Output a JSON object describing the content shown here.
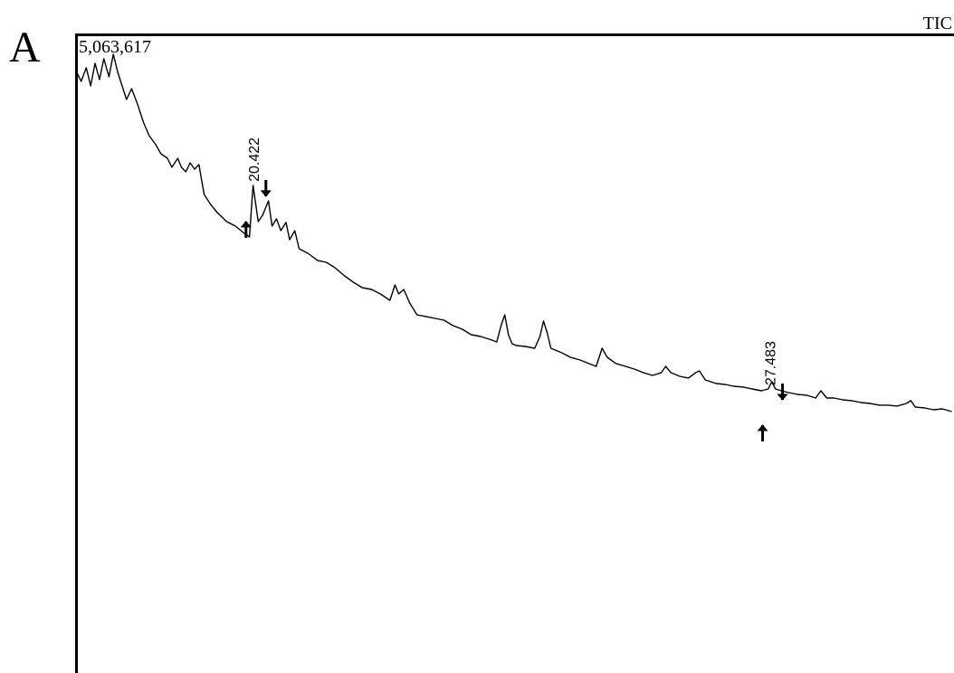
{
  "panel_label": "A",
  "chart_data": {
    "type": "line",
    "title": "TIC",
    "color": "#000000",
    "xlim": [
      18,
      30
    ],
    "ylim": [
      0,
      5063617
    ],
    "yticks": [
      {
        "value": 5063617,
        "label": "5,063,617"
      }
    ],
    "grid": false,
    "peak_labels": [
      20.422,
      27.483
    ],
    "x": [
      18.01,
      18.07,
      18.14,
      18.2,
      18.26,
      18.32,
      18.38,
      18.45,
      18.51,
      18.57,
      18.63,
      18.69,
      18.76,
      18.84,
      18.92,
      19.0,
      19.09,
      19.16,
      19.25,
      19.31,
      19.39,
      19.44,
      19.5,
      19.56,
      19.62,
      19.68,
      19.75,
      19.83,
      19.93,
      20.06,
      20.18,
      20.3,
      20.37,
      20.42,
      20.49,
      20.55,
      20.63,
      20.68,
      20.74,
      20.8,
      20.87,
      20.92,
      20.99,
      21.05,
      21.17,
      21.3,
      21.42,
      21.54,
      21.67,
      21.79,
      21.91,
      22.04,
      22.16,
      22.29,
      22.36,
      22.41,
      22.48,
      22.56,
      22.66,
      22.78,
      22.91,
      23.03,
      23.15,
      23.28,
      23.4,
      23.53,
      23.65,
      23.75,
      23.81,
      23.86,
      23.91,
      23.96,
      24.02,
      24.14,
      24.27,
      24.34,
      24.39,
      24.44,
      24.49,
      24.64,
      24.76,
      24.89,
      25.01,
      25.11,
      25.19,
      25.26,
      25.38,
      25.51,
      25.63,
      25.75,
      25.88,
      26.0,
      26.06,
      26.13,
      26.25,
      26.37,
      26.47,
      26.52,
      26.6,
      26.75,
      26.87,
      26.99,
      27.12,
      27.24,
      27.37,
      27.46,
      27.51,
      27.56,
      27.64,
      27.74,
      27.86,
      27.99,
      28.11,
      28.18,
      28.26,
      28.36,
      28.48,
      28.6,
      28.73,
      28.85,
      28.98,
      29.1,
      29.22,
      29.35,
      29.41,
      29.47,
      29.6,
      29.72,
      29.84,
      29.97
    ],
    "values": [
      4762000,
      4690000,
      4798000,
      4654000,
      4834000,
      4704000,
      4870000,
      4726000,
      4906000,
      4762000,
      4654000,
      4546000,
      4632000,
      4510000,
      4366000,
      4258000,
      4186000,
      4114000,
      4078000,
      4007000,
      4078000,
      4007000,
      3971000,
      4042000,
      3992000,
      4028000,
      3791000,
      3719000,
      3647000,
      3575000,
      3539000,
      3481000,
      3453000,
      3863000,
      3575000,
      3625000,
      3740000,
      3539000,
      3597000,
      3503000,
      3568000,
      3431000,
      3503000,
      3359000,
      3323000,
      3266000,
      3251000,
      3208000,
      3143000,
      3093000,
      3050000,
      3035000,
      2999000,
      2949000,
      3071000,
      2999000,
      3035000,
      2928000,
      2834000,
      2820000,
      2805000,
      2791000,
      2748000,
      2719000,
      2676000,
      2661000,
      2640000,
      2618000,
      2748000,
      2834000,
      2676000,
      2604000,
      2589000,
      2582000,
      2568000,
      2661000,
      2784000,
      2690000,
      2568000,
      2532000,
      2496000,
      2474000,
      2446000,
      2424000,
      2568000,
      2496000,
      2446000,
      2424000,
      2402000,
      2374000,
      2352000,
      2374000,
      2424000,
      2374000,
      2345000,
      2331000,
      2374000,
      2388000,
      2316000,
      2287000,
      2280000,
      2266000,
      2259000,
      2244000,
      2230000,
      2244000,
      2302000,
      2244000,
      2230000,
      2215000,
      2201000,
      2194000,
      2172000,
      2230000,
      2172000,
      2172000,
      2158000,
      2151000,
      2136000,
      2129000,
      2115000,
      2115000,
      2108000,
      2129000,
      2151000,
      2100000,
      2093000,
      2079000,
      2086000,
      2064000
    ]
  }
}
